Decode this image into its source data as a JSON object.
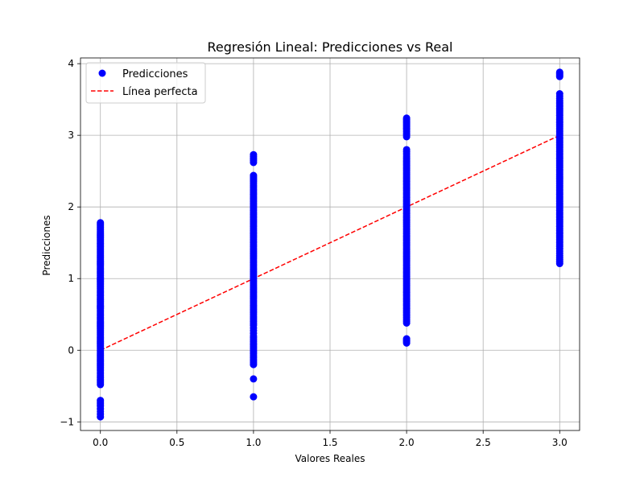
{
  "chart_data": {
    "type": "scatter",
    "title": "Regresión Lineal: Predicciones vs Real",
    "xlabel": "Valores Reales",
    "ylabel": "Predicciones",
    "xlim": [
      -0.13,
      3.13
    ],
    "ylim": [
      -1.12,
      4.08
    ],
    "x_ticks": [
      0.0,
      0.5,
      1.0,
      1.5,
      2.0,
      2.5,
      3.0
    ],
    "x_tick_labels": [
      "0.0",
      "0.5",
      "1.0",
      "1.5",
      "2.0",
      "2.5",
      "3.0"
    ],
    "y_ticks": [
      -1,
      0,
      1,
      2,
      3,
      4
    ],
    "y_tick_labels": [
      "−1",
      "0",
      "1",
      "2",
      "3",
      "4"
    ],
    "grid": true,
    "legend_position": "top-left",
    "series": [
      {
        "name": "Predicciones",
        "kind": "scatter",
        "color": "#0000ff",
        "groups": [
          {
            "x": 0,
            "values": [
              -0.93,
              -0.78,
              -0.7,
              -0.48,
              -0.38,
              -0.28,
              -0.2,
              -0.12,
              -0.05,
              0.05,
              0.12,
              0.2,
              0.28,
              0.35,
              0.42,
              0.5,
              0.58,
              0.65,
              0.72,
              0.8,
              0.88,
              0.95,
              1.02,
              1.1,
              1.18,
              1.25,
              1.32,
              1.4,
              1.48,
              1.55,
              1.62,
              1.7,
              1.78
            ]
          },
          {
            "x": 1,
            "values": [
              -0.65,
              -0.4,
              -0.2,
              -0.1,
              0.0,
              0.1,
              0.2,
              0.35,
              0.45,
              0.55,
              0.65,
              0.75,
              0.85,
              0.95,
              1.05,
              1.15,
              1.25,
              1.35,
              1.45,
              1.55,
              1.65,
              1.75,
              1.85,
              1.95,
              2.05,
              2.15,
              2.25,
              2.35,
              2.44,
              2.62,
              2.73
            ]
          },
          {
            "x": 2,
            "values": [
              0.1,
              0.16,
              0.38,
              0.48,
              0.58,
              0.68,
              0.78,
              0.88,
              0.98,
              1.08,
              1.18,
              1.28,
              1.38,
              1.48,
              1.58,
              1.68,
              1.78,
              1.88,
              1.98,
              2.08,
              2.18,
              2.28,
              2.38,
              2.48,
              2.58,
              2.68,
              2.8,
              2.98,
              3.08,
              3.16,
              3.24
            ]
          },
          {
            "x": 3,
            "values": [
              1.21,
              1.32,
              1.45,
              1.55,
              1.65,
              1.75,
              1.85,
              1.95,
              2.05,
              2.15,
              2.25,
              2.35,
              2.45,
              2.55,
              2.65,
              2.75,
              2.85,
              2.95,
              3.05,
              3.15,
              3.25,
              3.35,
              3.45,
              3.58,
              3.82,
              3.88
            ]
          }
        ]
      },
      {
        "name": "Línea perfecta",
        "kind": "line",
        "style": "dashed",
        "color": "#ff0000",
        "x": [
          0,
          3
        ],
        "y": [
          0,
          3
        ]
      }
    ]
  }
}
